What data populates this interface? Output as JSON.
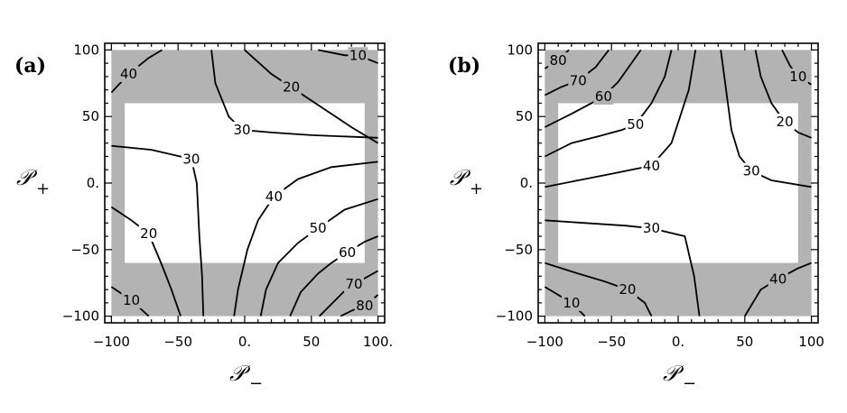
{
  "chart_data": [
    {
      "type": "contour",
      "panel_label": "(a)",
      "xlabel": "𝒫",
      "xlabel_sub": "−",
      "ylabel": "𝒫",
      "ylabel_sub": "+",
      "xlim": [
        -105,
        105
      ],
      "ylim": [
        -105,
        105
      ],
      "x_ticks": [
        {
          "value": -100,
          "label": "−100"
        },
        {
          "value": -50,
          "label": "−50"
        },
        {
          "value": 0,
          "label": "0."
        },
        {
          "value": 50,
          "label": "50"
        },
        {
          "value": 100,
          "label": "100."
        }
      ],
      "y_ticks": [
        {
          "value": 100,
          "label": "100"
        },
        {
          "value": 50,
          "label": "50"
        },
        {
          "value": 0,
          "label": "0."
        },
        {
          "value": -50,
          "label": "−50"
        },
        {
          "value": -100,
          "label": "−100"
        }
      ],
      "shading": {
        "outer": {
          "x": [
            -100,
            100
          ],
          "y": [
            -100,
            100
          ],
          "color": "#b3b3b3"
        },
        "inner_white": {
          "x": [
            -90,
            90
          ],
          "y": [
            -60,
            60
          ],
          "color": "#ffffff"
        }
      },
      "contours": [
        {
          "level": 10,
          "label": "10",
          "label_at": [
            -85,
            -88
          ],
          "points": [
            [
              -100,
              -78
            ],
            [
              -85,
              -88
            ],
            [
              -72,
              -100
            ]
          ]
        },
        {
          "level": 20,
          "label": "20",
          "label_at": [
            -72,
            -38
          ],
          "points": [
            [
              -100,
              -18
            ],
            [
              -85,
              -28
            ],
            [
              -72,
              -38
            ],
            [
              -62,
              -62
            ],
            [
              -55,
              -80
            ],
            [
              -48,
              -100
            ]
          ]
        },
        {
          "level": 30,
          "label": "30",
          "label_at": [
            -40,
            18
          ],
          "points": [
            [
              -100,
              28
            ],
            [
              -70,
              25
            ],
            [
              -40,
              18
            ],
            [
              -36,
              0
            ],
            [
              -34,
              -40
            ],
            [
              -32,
              -70
            ],
            [
              -31,
              -100
            ]
          ]
        },
        {
          "level": 30,
          "label": "30",
          "label_at": [
            -2,
            40
          ],
          "points": [
            [
              -25,
              100
            ],
            [
              -22,
              75
            ],
            [
              -12,
              50
            ],
            [
              -2,
              40
            ],
            [
              20,
              38
            ],
            [
              50,
              36
            ],
            [
              100,
              34
            ]
          ]
        },
        {
          "level": 40,
          "label": "40",
          "label_at": [
            -87,
            82
          ],
          "points": [
            [
              -100,
              68
            ],
            [
              -87,
              82
            ],
            [
              -72,
              94
            ],
            [
              -62,
              100
            ]
          ]
        },
        {
          "level": 40,
          "label": "40",
          "label_at": [
            22,
            -10
          ],
          "points": [
            [
              -8,
              -100
            ],
            [
              -5,
              -80
            ],
            [
              2,
              -50
            ],
            [
              10,
              -28
            ],
            [
              22,
              -10
            ],
            [
              40,
              3
            ],
            [
              65,
              12
            ],
            [
              100,
              16
            ]
          ]
        },
        {
          "level": 50,
          "label": "50",
          "label_at": [
            55,
            -34
          ],
          "points": [
            [
              12,
              -100
            ],
            [
              16,
              -80
            ],
            [
              25,
              -60
            ],
            [
              40,
              -45
            ],
            [
              55,
              -34
            ],
            [
              75,
              -20
            ],
            [
              100,
              -12
            ]
          ]
        },
        {
          "level": 60,
          "label": "60",
          "label_at": [
            77,
            -52
          ],
          "points": [
            [
              34,
              -100
            ],
            [
              42,
              -82
            ],
            [
              55,
              -68
            ],
            [
              65,
              -60
            ],
            [
              77,
              -52
            ],
            [
              90,
              -44
            ],
            [
              100,
              -40
            ]
          ]
        },
        {
          "level": 70,
          "label": "70",
          "label_at": [
            82,
            -76
          ],
          "points": [
            [
              56,
              -100
            ],
            [
              66,
              -90
            ],
            [
              74,
              -82
            ],
            [
              82,
              -76
            ],
            [
              100,
              -66
            ]
          ]
        },
        {
          "level": 80,
          "label": "80",
          "label_at": [
            90,
            -92
          ],
          "points": [
            [
              72,
              -100
            ],
            [
              80,
              -96
            ],
            [
              90,
              -92
            ],
            [
              100,
              -84
            ]
          ]
        },
        {
          "level": 20,
          "label": "20",
          "label_at": [
            35,
            72
          ],
          "points": [
            [
              0,
              100
            ],
            [
              20,
              82
            ],
            [
              35,
              72
            ],
            [
              50,
              62
            ],
            [
              65,
              52
            ],
            [
              80,
              42
            ],
            [
              100,
              30
            ]
          ]
        },
        {
          "level": 10,
          "label": "10",
          "label_at": [
            85,
            96
          ],
          "points": [
            [
              55,
              100
            ],
            [
              75,
              96
            ],
            [
              85,
              96
            ],
            [
              100,
              90
            ]
          ]
        }
      ]
    },
    {
      "type": "contour",
      "panel_label": "(b)",
      "xlabel": "𝒫",
      "xlabel_sub": "−",
      "ylabel": "𝒫",
      "ylabel_sub": "+",
      "xlim": [
        -105,
        105
      ],
      "ylim": [
        -105,
        105
      ],
      "x_ticks": [
        {
          "value": -100,
          "label": "−100"
        },
        {
          "value": -50,
          "label": "−50"
        },
        {
          "value": 0,
          "label": "0."
        },
        {
          "value": 50,
          "label": "50"
        },
        {
          "value": 100,
          "label": "100"
        }
      ],
      "y_ticks": [
        {
          "value": 100,
          "label": "100"
        },
        {
          "value": 50,
          "label": "50"
        },
        {
          "value": 0,
          "label": "0."
        },
        {
          "value": -50,
          "label": "−50"
        },
        {
          "value": -100,
          "label": "−100"
        }
      ],
      "shading": {
        "outer": {
          "x": [
            -100,
            100
          ],
          "y": [
            -100,
            100
          ],
          "color": "#b3b3b3"
        },
        "inner_white": {
          "x": [
            -90,
            90
          ],
          "y": [
            -60,
            60
          ],
          "color": "#ffffff"
        }
      },
      "contours": [
        {
          "level": 80,
          "label": "80",
          "label_at": [
            -90,
            92
          ],
          "points": [
            [
              -100,
              86
            ],
            [
              -90,
              92
            ],
            [
              -82,
              100
            ]
          ]
        },
        {
          "level": 70,
          "label": "70",
          "label_at": [
            -75,
            77
          ],
          "points": [
            [
              -100,
              66
            ],
            [
              -88,
              72
            ],
            [
              -75,
              77
            ],
            [
              -62,
              87
            ],
            [
              -52,
              100
            ]
          ]
        },
        {
          "level": 60,
          "label": "60",
          "label_at": [
            -56,
            65
          ],
          "points": [
            [
              -100,
              42
            ],
            [
              -80,
              52
            ],
            [
              -65,
              60
            ],
            [
              -56,
              65
            ],
            [
              -45,
              76
            ],
            [
              -35,
              90
            ],
            [
              -28,
              100
            ]
          ]
        },
        {
          "level": 50,
          "label": "50",
          "label_at": [
            -32,
            44
          ],
          "points": [
            [
              -100,
              20
            ],
            [
              -80,
              30
            ],
            [
              -60,
              35
            ],
            [
              -42,
              40
            ],
            [
              -32,
              44
            ],
            [
              -20,
              60
            ],
            [
              -10,
              80
            ],
            [
              -5,
              100
            ]
          ]
        },
        {
          "level": 40,
          "label": "40",
          "label_at": [
            -20,
            13
          ],
          "points": [
            [
              -100,
              -3
            ],
            [
              -75,
              2
            ],
            [
              -50,
              7
            ],
            [
              -20,
              13
            ],
            [
              -5,
              30
            ],
            [
              8,
              70
            ],
            [
              13,
              100
            ]
          ]
        },
        {
          "level": 30,
          "label": "30",
          "label_at": [
            -20,
            -34
          ],
          "points": [
            [
              -100,
              -28
            ],
            [
              -70,
              -30
            ],
            [
              -40,
              -32
            ],
            [
              -20,
              -34
            ],
            [
              5,
              -40
            ],
            [
              12,
              -70
            ],
            [
              16,
              -100
            ]
          ]
        },
        {
          "level": 30,
          "label": "30",
          "label_at": [
            55,
            9
          ],
          "points": [
            [
              32,
              100
            ],
            [
              36,
              70
            ],
            [
              40,
              40
            ],
            [
              46,
              20
            ],
            [
              55,
              9
            ],
            [
              70,
              2
            ],
            [
              100,
              -3
            ]
          ]
        },
        {
          "level": 20,
          "label": "20",
          "label_at": [
            80,
            46
          ],
          "points": [
            [
              58,
              100
            ],
            [
              62,
              80
            ],
            [
              70,
              60
            ],
            [
              80,
              46
            ],
            [
              90,
              38
            ],
            [
              100,
              34
            ]
          ]
        },
        {
          "level": 10,
          "label": "10",
          "label_at": [
            90,
            80
          ],
          "points": [
            [
              78,
              100
            ],
            [
              84,
              88
            ],
            [
              90,
              80
            ],
            [
              100,
              74
            ]
          ]
        },
        {
          "level": 20,
          "label": "20",
          "label_at": [
            -38,
            -80
          ],
          "points": [
            [
              -100,
              -60
            ],
            [
              -75,
              -68
            ],
            [
              -55,
              -74
            ],
            [
              -38,
              -80
            ],
            [
              -25,
              -90
            ],
            [
              -20,
              -100
            ]
          ]
        },
        {
          "level": 10,
          "label": "10",
          "label_at": [
            -80,
            -90
          ],
          "points": [
            [
              -100,
              -78
            ],
            [
              -80,
              -90
            ],
            [
              -70,
              -100
            ]
          ]
        },
        {
          "level": 40,
          "label": "40",
          "label_at": [
            75,
            -72
          ],
          "points": [
            [
              50,
              -100
            ],
            [
              62,
              -80
            ],
            [
              75,
              -72
            ],
            [
              90,
              -64
            ],
            [
              100,
              -60
            ]
          ]
        }
      ]
    }
  ]
}
